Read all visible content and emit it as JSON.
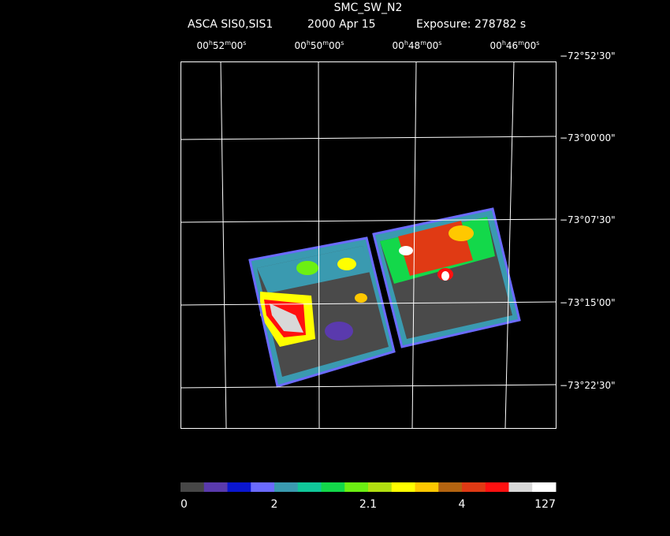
{
  "header": {
    "title": "SMC_SW_N2",
    "instrument": "ASCA SIS0,SIS1",
    "date": "2000 Apr 15",
    "exposure": "Exposure: 278782 s"
  },
  "ra_labels": [
    [
      "00",
      "h",
      "52",
      "m",
      "00",
      "s"
    ],
    [
      "00",
      "h",
      "50",
      "m",
      "00",
      "s"
    ],
    [
      "00",
      "h",
      "48",
      "m",
      "00",
      "s"
    ],
    [
      "00",
      "h",
      "46",
      "m",
      "00",
      "s"
    ]
  ],
  "dec_labels": [
    "−72°52'30\"",
    "−73°00'00\"",
    "−73°07'30\"",
    "−73°15'00\"",
    "−73°22'30\""
  ],
  "colorbar": {
    "colors": [
      "#474747",
      "#5a3aad",
      "#0a16d0",
      "#6b6bff",
      "#3a9ab0",
      "#10c89a",
      "#13d84a",
      "#6cf012",
      "#b2e010",
      "#ffff00",
      "#ffc800",
      "#b46410",
      "#e03a14",
      "#ff1010",
      "#d8d8d8",
      "#ffffff"
    ],
    "labels": [
      0,
      2,
      2.1,
      4,
      127
    ]
  }
}
